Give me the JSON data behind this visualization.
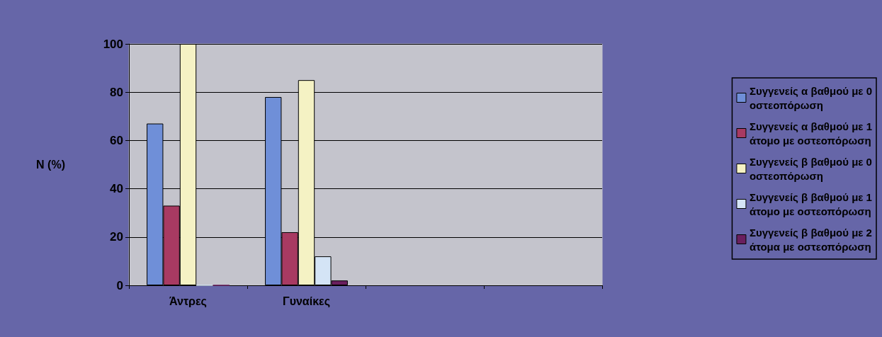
{
  "chart_data": {
    "type": "bar",
    "ylabel": "N (%)",
    "categories": [
      "Άντρες",
      "Γυναίκες",
      null,
      null
    ],
    "series": [
      {
        "name": "Συγγενείς α βαθμού με 0 οστεοπόρωση",
        "color": "#6f8fd8",
        "values": [
          67,
          78,
          null,
          null
        ]
      },
      {
        "name": "Συγγενείς α βαθμού με 1 άτομο με οστεοπόρωση",
        "color": "#a83a62",
        "values": [
          33,
          22,
          null,
          null
        ]
      },
      {
        "name": "Συγγενείς β βαθμού με 0 οστεοπόρωση",
        "color": "#f5f2c4",
        "values": [
          100,
          85,
          null,
          null
        ]
      },
      {
        "name": "Συγγενείς β βαθμού με 1 άτομο με οστεοπόρωση",
        "color": "#d4e4f6",
        "values": [
          0,
          12,
          null,
          null
        ]
      },
      {
        "name": "Συγγενείς β βαθμού με 2 άτομα με οστεοπόρωση",
        "color": "#6a1f5e",
        "values": [
          0,
          2,
          null,
          null
        ]
      }
    ],
    "ylim": [
      0,
      100
    ],
    "yticks": [
      0,
      20,
      40,
      60,
      80,
      100
    ],
    "grid": "y",
    "legend": "right"
  }
}
